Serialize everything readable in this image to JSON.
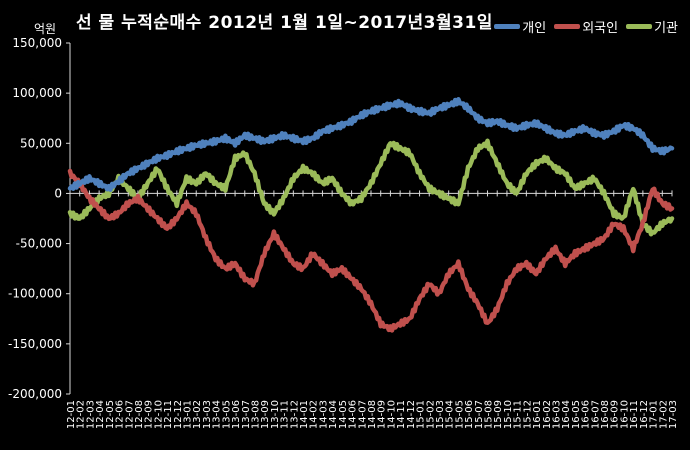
{
  "title": "선 물 누적순매수 2012년 1월 1일~2017년3월31일",
  "unit": "억원",
  "colors": {
    "background": "#000000",
    "individual": "#4f81bd",
    "foreign": "#c0504d",
    "institution": "#9bbb59"
  },
  "chart_data": {
    "type": "line",
    "title": "선 물 누적순매수 2012년 1월 1일~2017년3월31일",
    "ylabel": "억원",
    "xlabel": "",
    "ylim": [
      -200000,
      150000
    ],
    "yticks": [
      "150,000",
      "100,000",
      "50,000",
      "0",
      "-50,000",
      "-100,000",
      "-150,000",
      "-200,000"
    ],
    "ytick_values": [
      150000,
      100000,
      50000,
      0,
      -50000,
      -100000,
      -150000,
      -200000
    ],
    "legend_position": "top-right",
    "grid": false,
    "categories": [
      "12-01",
      "12-02",
      "12-03",
      "12-04",
      "12-05",
      "12-06",
      "12-07",
      "12-08",
      "12-09",
      "12-10",
      "12-11",
      "12-12",
      "13-01",
      "13-02",
      "13-03",
      "13-04",
      "13-05",
      "13-06",
      "13-07",
      "13-08",
      "13-09",
      "13-10",
      "13-11",
      "13-12",
      "14-01",
      "14-02",
      "14-03",
      "14-04",
      "14-05",
      "14-06",
      "14-07",
      "14-08",
      "14-09",
      "14-10",
      "14-11",
      "14-12",
      "15-01",
      "15-02",
      "15-03",
      "15-04",
      "15-05",
      "15-06",
      "15-07",
      "15-08",
      "15-09",
      "15-10",
      "15-11",
      "15-12",
      "16-01",
      "16-02",
      "16-03",
      "16-04",
      "16-05",
      "16-06",
      "16-07",
      "16-08",
      "16-09",
      "16-10",
      "16-11",
      "16-12",
      "17-01",
      "17-02",
      "17-03"
    ],
    "series": [
      {
        "name": "개인",
        "color": "#4f81bd",
        "values": [
          5000,
          10000,
          15000,
          10000,
          5000,
          12000,
          20000,
          25000,
          30000,
          35000,
          38000,
          42000,
          45000,
          48000,
          50000,
          52000,
          55000,
          50000,
          58000,
          55000,
          52000,
          55000,
          58000,
          55000,
          52000,
          55000,
          62000,
          65000,
          68000,
          72000,
          78000,
          82000,
          85000,
          88000,
          90000,
          85000,
          82000,
          80000,
          85000,
          88000,
          92000,
          85000,
          75000,
          70000,
          72000,
          68000,
          65000,
          68000,
          70000,
          65000,
          60000,
          58000,
          62000,
          65000,
          60000,
          58000,
          62000,
          68000,
          65000,
          58000,
          45000,
          42000,
          45000
        ]
      },
      {
        "name": "외국인",
        "color": "#c0504d",
        "values": [
          20000,
          10000,
          -5000,
          -15000,
          -25000,
          -20000,
          -10000,
          -5000,
          -15000,
          -25000,
          -35000,
          -25000,
          -10000,
          -20000,
          -45000,
          -65000,
          -75000,
          -70000,
          -85000,
          -90000,
          -60000,
          -40000,
          -55000,
          -70000,
          -75000,
          -60000,
          -70000,
          -80000,
          -75000,
          -85000,
          -95000,
          -110000,
          -130000,
          -135000,
          -130000,
          -125000,
          -105000,
          -90000,
          -100000,
          -80000,
          -70000,
          -95000,
          -110000,
          -130000,
          -115000,
          -90000,
          -75000,
          -70000,
          -80000,
          -65000,
          -55000,
          -70000,
          -60000,
          -55000,
          -50000,
          -45000,
          -30000,
          -35000,
          -55000,
          -30000,
          5000,
          -10000,
          -15000
        ]
      },
      {
        "name": "기관",
        "color": "#9bbb59",
        "values": [
          -20000,
          -25000,
          -15000,
          -5000,
          0,
          15000,
          5000,
          -5000,
          10000,
          25000,
          5000,
          -10000,
          15000,
          10000,
          20000,
          10000,
          5000,
          35000,
          40000,
          20000,
          -10000,
          -20000,
          -5000,
          15000,
          25000,
          20000,
          10000,
          15000,
          0,
          -10000,
          -5000,
          10000,
          30000,
          50000,
          45000,
          40000,
          20000,
          5000,
          0,
          -5000,
          -10000,
          25000,
          45000,
          50000,
          30000,
          10000,
          0,
          20000,
          30000,
          35000,
          25000,
          20000,
          5000,
          10000,
          15000,
          0,
          -20000,
          -25000,
          5000,
          -30000,
          -40000,
          -30000,
          -25000
        ]
      }
    ]
  }
}
